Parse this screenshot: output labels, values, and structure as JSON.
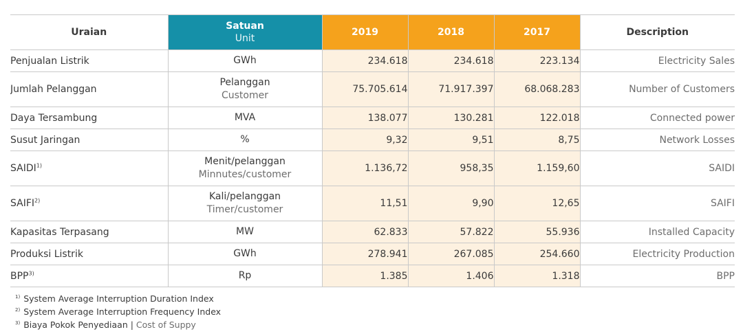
{
  "header": {
    "uraian": "Uraian",
    "satuan": "Satuan",
    "unit": "Unit",
    "years": [
      "2019",
      "2018",
      "2017"
    ],
    "description": "Description"
  },
  "rows": [
    {
      "uraian": "Penjualan Listrik",
      "sup": "",
      "satuan": "GWh",
      "satuan_en": "",
      "values": [
        "234.618",
        "234.618",
        "223.134"
      ],
      "description": "Electricity Sales"
    },
    {
      "uraian": "Jumlah Pelanggan",
      "sup": "",
      "satuan": "Pelanggan",
      "satuan_en": "Customer",
      "values": [
        "75.705.614",
        "71.917.397",
        "68.068.283"
      ],
      "description": "Number of Customers"
    },
    {
      "uraian": "Daya Tersambung",
      "sup": "",
      "satuan": "MVA",
      "satuan_en": "",
      "values": [
        "138.077",
        "130.281",
        "122.018"
      ],
      "description": "Connected power"
    },
    {
      "uraian": "Susut Jaringan",
      "sup": "",
      "satuan": "%",
      "satuan_en": "",
      "values": [
        "9,32",
        "9,51",
        "8,75"
      ],
      "description": "Network Losses"
    },
    {
      "uraian": "SAIDI",
      "sup": "1)",
      "satuan": "Menit/pelanggan",
      "satuan_en": "Minnutes/customer",
      "values": [
        "1.136,72",
        "958,35",
        "1.159,60"
      ],
      "description": "SAIDI"
    },
    {
      "uraian": "SAIFI",
      "sup": "2)",
      "satuan": "Kali/pelanggan",
      "satuan_en": "Timer/customer",
      "values": [
        "11,51",
        "9,90",
        "12,65"
      ],
      "description": "SAIFI"
    },
    {
      "uraian": "Kapasitas Terpasang",
      "sup": "",
      "satuan": "MW",
      "satuan_en": "",
      "values": [
        "62.833",
        "57.822",
        "55.936"
      ],
      "description": "Installed Capacity"
    },
    {
      "uraian": "Produksi Listrik",
      "sup": "",
      "satuan": "GWh",
      "satuan_en": "",
      "values": [
        "278.941",
        "267.085",
        "254.660"
      ],
      "description": "Electricity Production"
    },
    {
      "uraian": "BPP",
      "sup": "3)",
      "satuan": "Rp",
      "satuan_en": "",
      "values": [
        "1.385",
        "1.406",
        "1.318"
      ],
      "description": "BPP"
    }
  ],
  "footnotes": [
    {
      "mark": "1)",
      "text": "System Average Interruption Duration Index",
      "text_en": ""
    },
    {
      "mark": "2)",
      "text": "System Average Interruption Frequency Index",
      "text_en": ""
    },
    {
      "mark": "3)",
      "text": "Biaya Pokok Penyediaan | ",
      "text_en": "Cost of Suppy"
    }
  ]
}
